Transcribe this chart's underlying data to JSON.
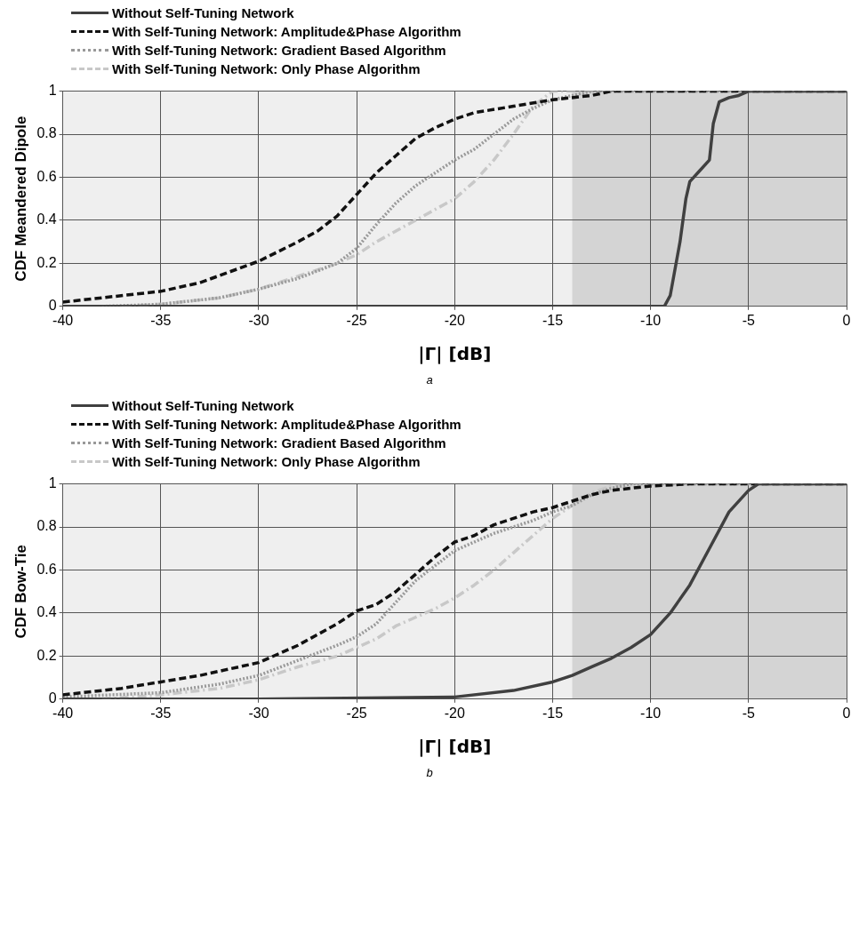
{
  "chart_data": [
    {
      "type": "line",
      "xlabel": "|Γ| [dB]",
      "ylabel": "CDF Meandered Dipole",
      "xlim": [
        -40,
        0
      ],
      "xticks": [
        -40,
        -35,
        -30,
        -25,
        -20,
        -15,
        -10,
        -5,
        0
      ],
      "ylim": [
        0,
        1
      ],
      "yticks": [
        0,
        0.2,
        0.4,
        0.6,
        0.8,
        1
      ],
      "grid": true,
      "legend": "top",
      "marker": "none",
      "annotations": [
        "a"
      ],
      "bands": [
        {
          "axis": "x",
          "from": -14,
          "to": 0,
          "color": "#d4d4d4"
        }
      ],
      "series": [
        {
          "name": "Without Self-Tuning Network",
          "color": "#404040",
          "line_style": "solid",
          "x": [
            -40,
            -10,
            -9.3,
            -9,
            -8.5,
            -8.2,
            -8,
            -7.5,
            -7,
            -6.8,
            -6.5,
            -6,
            -5.5,
            -5,
            0
          ],
          "values": [
            0,
            0,
            0,
            0.05,
            0.3,
            0.5,
            0.58,
            0.63,
            0.68,
            0.85,
            0.95,
            0.97,
            0.98,
            1,
            1
          ]
        },
        {
          "name": "With Self-Tuning Network: Amplitude&Phase Algorithm",
          "color": "#111111",
          "line_style": "dashed",
          "x": [
            -40,
            -38,
            -35,
            -33,
            -30,
            -28,
            -27,
            -26,
            -25,
            -24,
            -23,
            -22,
            -21,
            -20,
            -19,
            -17,
            -15,
            -13,
            -12,
            0
          ],
          "values": [
            0.02,
            0.04,
            0.07,
            0.11,
            0.21,
            0.3,
            0.35,
            0.42,
            0.52,
            0.62,
            0.7,
            0.78,
            0.83,
            0.87,
            0.9,
            0.93,
            0.96,
            0.98,
            1,
            1
          ]
        },
        {
          "name": "With Self-Tuning Network: Gradient Based Algorithm",
          "color": "#999999",
          "line_style": "dotted",
          "x": [
            -38,
            -35,
            -32,
            -30,
            -28,
            -26,
            -25,
            -24,
            -23,
            -22,
            -21,
            -20,
            -19,
            -18,
            -17,
            -16,
            -15,
            -14,
            -13,
            0
          ],
          "values": [
            0,
            0.01,
            0.04,
            0.08,
            0.13,
            0.2,
            0.27,
            0.38,
            0.48,
            0.56,
            0.62,
            0.68,
            0.73,
            0.8,
            0.87,
            0.92,
            0.96,
            0.98,
            1,
            1
          ]
        },
        {
          "name": "With Self-Tuning Network: Only Phase Algorithm",
          "color": "#c8c8c8",
          "line_style": "dashdot",
          "x": [
            -37,
            -35,
            -32,
            -30,
            -28,
            -26,
            -25,
            -24,
            -23,
            -22,
            -21,
            -20,
            -19,
            -18,
            -17,
            -16,
            -15,
            0
          ],
          "values": [
            0,
            0.01,
            0.04,
            0.08,
            0.14,
            0.2,
            0.24,
            0.3,
            0.35,
            0.4,
            0.45,
            0.5,
            0.58,
            0.68,
            0.8,
            0.93,
            1,
            1
          ]
        }
      ]
    },
    {
      "type": "line",
      "xlabel": "|Γ| [dB]",
      "ylabel": "CDF Bow-Tie",
      "xlim": [
        -40,
        0
      ],
      "xticks": [
        -40,
        -35,
        -30,
        -25,
        -20,
        -15,
        -10,
        -5,
        0
      ],
      "ylim": [
        0,
        1
      ],
      "yticks": [
        0,
        0.2,
        0.4,
        0.6,
        0.8,
        1
      ],
      "grid": true,
      "legend": "top",
      "marker": "none",
      "annotations": [
        "b"
      ],
      "bands": [
        {
          "axis": "x",
          "from": -14,
          "to": 0,
          "color": "#d4d4d4"
        }
      ],
      "series": [
        {
          "name": "Without Self-Tuning Network",
          "color": "#404040",
          "line_style": "solid",
          "x": [
            -40,
            -30,
            -20,
            -17,
            -15,
            -14,
            -13,
            -12,
            -11,
            -10,
            -9,
            -8,
            -7,
            -6,
            -5,
            -4.5,
            0
          ],
          "values": [
            0,
            0,
            0.01,
            0.04,
            0.08,
            0.11,
            0.15,
            0.19,
            0.24,
            0.3,
            0.4,
            0.53,
            0.7,
            0.87,
            0.97,
            1,
            1
          ]
        },
        {
          "name": "With Self-Tuning Network: Amplitude&Phase Algorithm",
          "color": "#111111",
          "line_style": "dashed",
          "x": [
            -40,
            -37,
            -35,
            -33,
            -30,
            -28,
            -27,
            -26,
            -25,
            -24,
            -23,
            -22,
            -21,
            -20,
            -19,
            -18,
            -17,
            -16,
            -15,
            -14,
            -13,
            -12,
            -11,
            -10,
            -8,
            0
          ],
          "values": [
            0.02,
            0.05,
            0.08,
            0.11,
            0.17,
            0.25,
            0.3,
            0.35,
            0.41,
            0.44,
            0.5,
            0.58,
            0.66,
            0.73,
            0.76,
            0.81,
            0.84,
            0.87,
            0.89,
            0.92,
            0.95,
            0.97,
            0.98,
            0.99,
            1,
            1
          ]
        },
        {
          "name": "With Self-Tuning Network: Gradient Based Algorithm",
          "color": "#999999",
          "line_style": "dotted",
          "x": [
            -40,
            -35,
            -32,
            -30,
            -28,
            -26,
            -25,
            -24,
            -23,
            -22,
            -21,
            -20,
            -19,
            -18,
            -17,
            -16,
            -15,
            -14,
            -13,
            -12,
            -11,
            0
          ],
          "values": [
            0.01,
            0.03,
            0.07,
            0.11,
            0.18,
            0.25,
            0.29,
            0.35,
            0.45,
            0.55,
            0.62,
            0.69,
            0.73,
            0.77,
            0.8,
            0.83,
            0.87,
            0.9,
            0.95,
            0.98,
            1,
            1
          ]
        },
        {
          "name": "With Self-Tuning Network: Only Phase Algorithm",
          "color": "#c8c8c8",
          "line_style": "dashdot",
          "x": [
            -38,
            -35,
            -32,
            -30,
            -28,
            -26,
            -25,
            -24,
            -23,
            -22,
            -21,
            -20,
            -19,
            -18,
            -17,
            -16,
            -15,
            -14,
            -13,
            -12,
            -11,
            0
          ],
          "values": [
            0,
            0.02,
            0.05,
            0.09,
            0.15,
            0.2,
            0.24,
            0.28,
            0.34,
            0.38,
            0.42,
            0.47,
            0.53,
            0.6,
            0.68,
            0.76,
            0.84,
            0.9,
            0.96,
            0.99,
            1,
            1
          ]
        }
      ]
    }
  ]
}
